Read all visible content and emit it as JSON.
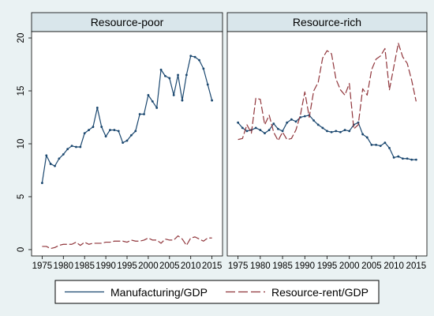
{
  "chart_data": {
    "type": "line",
    "panels": [
      {
        "title": "Resource-poor",
        "x": [
          1975,
          1976,
          1977,
          1978,
          1979,
          1980,
          1981,
          1982,
          1983,
          1984,
          1985,
          1986,
          1987,
          1988,
          1989,
          1990,
          1991,
          1992,
          1993,
          1994,
          1995,
          1996,
          1997,
          1998,
          1999,
          2000,
          2001,
          2002,
          2003,
          2004,
          2005,
          2006,
          2007,
          2008,
          2009,
          2010,
          2011,
          2012,
          2013,
          2014,
          2015
        ],
        "series": [
          {
            "name": "Manufacturing/GDP",
            "values": [
              6.3,
              8.9,
              8.1,
              7.9,
              8.6,
              9.0,
              9.5,
              9.8,
              9.7,
              9.7,
              11.0,
              11.3,
              11.6,
              13.4,
              11.6,
              10.7,
              11.3,
              11.3,
              11.2,
              10.1,
              10.3,
              10.8,
              11.2,
              12.8,
              12.8,
              14.6,
              14.0,
              13.4,
              17.0,
              16.4,
              16.2,
              14.6,
              16.5,
              14.1,
              16.5,
              18.3,
              18.2,
              17.9,
              17.1,
              15.6,
              14.1
            ]
          },
          {
            "name": "Resource-rent/GDP",
            "values": [
              0.3,
              0.3,
              0.1,
              0.2,
              0.4,
              0.5,
              0.5,
              0.5,
              0.7,
              0.4,
              0.7,
              0.5,
              0.6,
              0.6,
              0.6,
              0.7,
              0.7,
              0.8,
              0.8,
              0.8,
              0.7,
              0.9,
              0.8,
              0.8,
              0.9,
              1.1,
              0.9,
              0.9,
              0.6,
              1.0,
              0.9,
              0.9,
              1.3,
              1.0,
              0.4,
              1.1,
              1.2,
              1.0,
              0.8,
              1.1,
              1.1
            ]
          }
        ]
      },
      {
        "title": "Resource-rich",
        "x": [
          1975,
          1976,
          1977,
          1978,
          1979,
          1980,
          1981,
          1982,
          1983,
          1984,
          1985,
          1986,
          1987,
          1988,
          1989,
          1990,
          1991,
          1992,
          1993,
          1994,
          1995,
          1996,
          1997,
          1998,
          1999,
          2000,
          2001,
          2002,
          2003,
          2004,
          2005,
          2006,
          2007,
          2008,
          2009,
          2010,
          2011,
          2012,
          2013,
          2014,
          2015
        ],
        "series": [
          {
            "name": "Manufacturing/GDP",
            "values": [
              12.0,
              11.5,
              11.2,
              11.3,
              11.5,
              11.3,
              11.0,
              11.3,
              11.9,
              11.4,
              11.2,
              12.0,
              12.3,
              12.1,
              12.5,
              12.6,
              12.7,
              12.2,
              11.8,
              11.5,
              11.2,
              11.1,
              11.2,
              11.1,
              11.3,
              11.2,
              11.8,
              12.0,
              10.9,
              10.6,
              9.9,
              9.9,
              9.8,
              10.1,
              9.6,
              8.7,
              8.8,
              8.6,
              8.6,
              8.5,
              8.5
            ]
          },
          {
            "name": "Resource-rent/GDP",
            "values": [
              10.4,
              10.5,
              11.8,
              11.0,
              14.3,
              14.2,
              11.8,
              12.7,
              11.1,
              10.3,
              11.1,
              10.4,
              10.5,
              11.3,
              12.7,
              14.9,
              12.5,
              15.0,
              15.8,
              18.1,
              18.8,
              18.5,
              16.1,
              15.1,
              14.6,
              15.7,
              11.4,
              11.8,
              15.2,
              14.6,
              17.0,
              18.0,
              18.3,
              19.0,
              15.1,
              17.3,
              19.5,
              18.2,
              17.6,
              16.0,
              14.0
            ]
          }
        ]
      }
    ],
    "xticks": [
      1975,
      1980,
      1985,
      1990,
      1995,
      2000,
      2005,
      2010,
      2015
    ],
    "yticks": [
      0,
      5,
      10,
      15,
      20
    ],
    "xlim": [
      1974,
      2016
    ],
    "ylim": [
      -0.6,
      20.6
    ],
    "grid": false,
    "legend": {
      "position": "bottom",
      "items": [
        {
          "label": "Manufacturing/GDP",
          "color": "#1a476f",
          "dash": "solid"
        },
        {
          "label": "Resource-rent/GDP",
          "color": "#90353b",
          "dash": "long-dash"
        }
      ]
    },
    "colors": {
      "background": "#eaf2f3",
      "plot_background": "#ffffff",
      "header_background": "#d9e6eb",
      "manufacturing": "#1a476f",
      "resource_rent": "#90353b"
    }
  }
}
